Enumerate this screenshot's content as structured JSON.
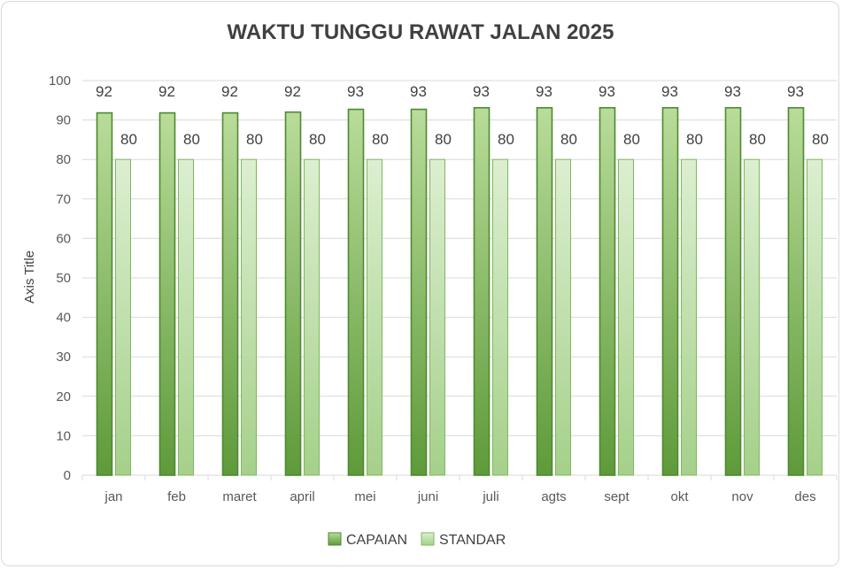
{
  "colors": {
    "capaian_top": "#b9dc9a",
    "capaian_bottom": "#5e9a3a",
    "capaian_stroke": "#4d8a2e",
    "standar_top": "#dcefd0",
    "standar_bottom": "#a5d08a",
    "standar_stroke": "#7fb860",
    "grid": "#d9d9d9"
  },
  "chart_data": {
    "type": "bar",
    "title": "WAKTU TUNGGU RAWAT JALAN 2025",
    "ylabel": "Axis Title",
    "xlabel": "",
    "ylim": [
      0,
      100
    ],
    "yticks": [
      "0",
      "10",
      "20",
      "30",
      "40",
      "50",
      "60",
      "70",
      "80",
      "90",
      "100"
    ],
    "grid": true,
    "legend_position": "bottom",
    "categories": [
      "jan",
      "feb",
      "maret",
      "april",
      "mei",
      "juni",
      "juli",
      "agts",
      "sept",
      "okt",
      "nov",
      "des"
    ],
    "series": [
      {
        "name": "CAPAIAN",
        "values": [
          92,
          92,
          92,
          92,
          93,
          93,
          93,
          93,
          93,
          93,
          93,
          93
        ],
        "bar_values": [
          91.8,
          91.8,
          91.8,
          92,
          92.7,
          92.7,
          93.1,
          93.1,
          93.1,
          93.1,
          93.1,
          93.1
        ],
        "labels": [
          "92",
          "92",
          "92",
          "92",
          "93",
          "93",
          "93",
          "93",
          "93",
          "93",
          "93",
          "93"
        ]
      },
      {
        "name": "STANDAR",
        "values": [
          80,
          80,
          80,
          80,
          80,
          80,
          80,
          80,
          80,
          80,
          80,
          80
        ],
        "bar_values": [
          80,
          80,
          80,
          80,
          80,
          80,
          80,
          80,
          80,
          80,
          80,
          80
        ],
        "labels": [
          "80",
          "80",
          "80",
          "80",
          "80",
          "80",
          "80",
          "80",
          "80",
          "80",
          "80",
          "80"
        ]
      }
    ]
  }
}
